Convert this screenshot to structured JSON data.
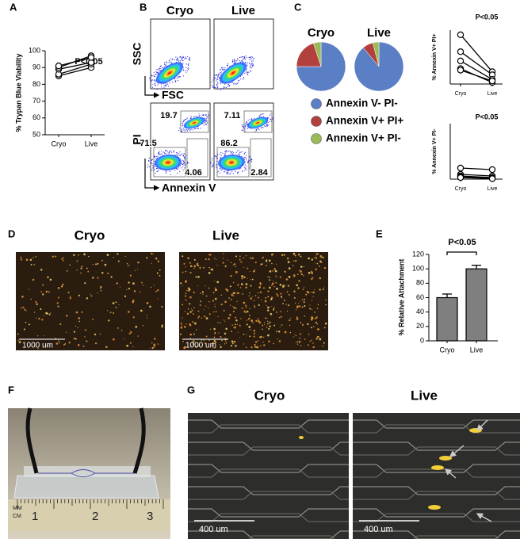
{
  "panel_labels": [
    "A",
    "B",
    "C",
    "D",
    "E",
    "F",
    "G"
  ],
  "chart_data": [
    {
      "type": "line",
      "ylabel": "% Trypan Blue Viability",
      "annotation": "P<0.05",
      "categories": [
        "Cryo",
        "Live"
      ],
      "color": "#000000",
      "series": [
        {
          "values": [
            85,
            90
          ]
        },
        {
          "values": [
            86,
            92
          ]
        },
        {
          "values": [
            89,
            93
          ]
        },
        {
          "values": [
            90,
            97
          ]
        },
        {
          "values": [
            91,
            96
          ]
        }
      ],
      "ylim": [
        50,
        100
      ],
      "yticks": [
        50,
        60,
        70,
        80,
        90,
        100
      ]
    },
    {
      "type": "pie",
      "title": "Cryo",
      "categories": [
        "Annexin V- PI-",
        "Annexin V+ PI+",
        "Annexin V+ PI-"
      ],
      "values": [
        75,
        20,
        5
      ],
      "colors": [
        "#5b7fc4",
        "#b2413e",
        "#9bbb59"
      ]
    },
    {
      "type": "pie",
      "title": "Live",
      "categories": [
        "Annexin V- PI-",
        "Annexin V+ PI+",
        "Annexin V+ PI-"
      ],
      "values": [
        89,
        7,
        4
      ],
      "colors": [
        "#5b7fc4",
        "#b2413e",
        "#9bbb59"
      ]
    },
    {
      "type": "line",
      "ylabel": "% Annexin V+ PI+",
      "annotation": "P<0.05",
      "categories": [
        "Cryo",
        "Live"
      ],
      "color": "#000000",
      "series": [
        {
          "values": [
            32,
            8
          ]
        },
        {
          "values": [
            21,
            6
          ]
        },
        {
          "values": [
            15,
            3
          ]
        },
        {
          "values": [
            10,
            1
          ]
        },
        {
          "values": [
            9,
            2
          ]
        }
      ],
      "ylim": [
        0,
        35
      ]
    },
    {
      "type": "line",
      "ylabel": "% Annexin V+ PI-",
      "annotation": "P<0.05",
      "categories": [
        "Cryo",
        "Live"
      ],
      "color": "#000000",
      "series": [
        {
          "values": [
            7,
            6
          ]
        },
        {
          "values": [
            3,
            2
          ]
        },
        {
          "values": [
            2,
            1
          ]
        },
        {
          "values": [
            1.5,
            0.5
          ]
        },
        {
          "values": [
            1,
            0.3
          ]
        }
      ],
      "ylim": [
        0,
        35
      ]
    },
    {
      "type": "bar",
      "ylabel": "% Relative Attachment",
      "annotation": "P<0.05",
      "categories": [
        "Cryo",
        "Live"
      ],
      "values": [
        60,
        100
      ],
      "errors": [
        5,
        5
      ],
      "color": "#7f7f7f",
      "ylim": [
        0,
        120
      ],
      "yticks": [
        0,
        20,
        40,
        60,
        80,
        100,
        120
      ]
    }
  ],
  "flow": {
    "columns": [
      "Cryo",
      "Live"
    ],
    "scatter_y": "SSC",
    "scatter_x": "FSC",
    "annexin_y": "PI",
    "annexin_x": "Annexin V",
    "gates": [
      [
        19.7,
        71.5,
        4.06
      ],
      [
        7.11,
        86.2,
        2.84
      ]
    ]
  },
  "attachment_images": {
    "columns": [
      "Cryo",
      "Live"
    ],
    "scale_bars": [
      "1000 um",
      "1000 um"
    ]
  },
  "device_photo": {
    "ruler": [
      "MM",
      "CM",
      "1",
      "2",
      "3"
    ]
  },
  "channel_images": {
    "columns": [
      "Cryo",
      "Live"
    ],
    "scale_bars": [
      "400 um",
      "400 um"
    ]
  }
}
